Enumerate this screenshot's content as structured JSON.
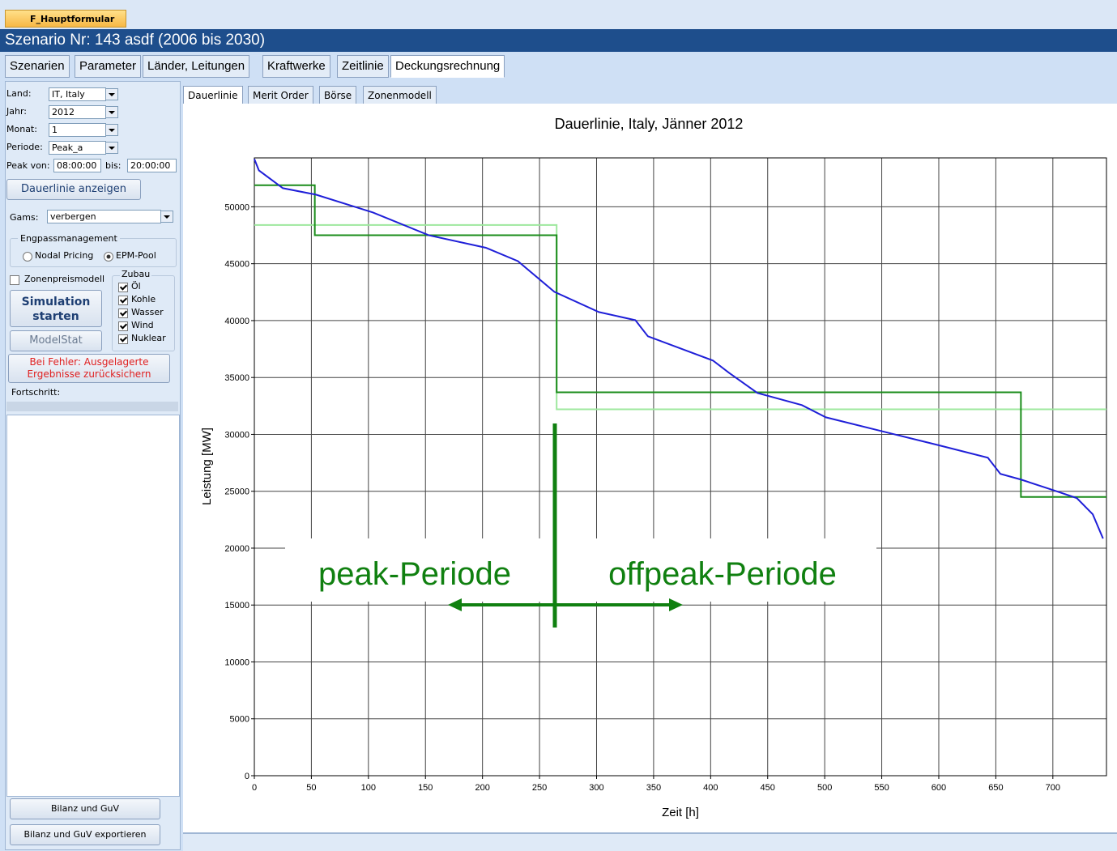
{
  "window": {
    "tab_title": "F_Hauptformular",
    "title": "Szenario Nr: 143 asdf (2006 bis 2030)"
  },
  "main_tabs": [
    "Szenarien",
    "Parameter",
    "Länder, Leitungen",
    "Kraftwerke",
    "Zeitlinie",
    "Deckungsrechnung"
  ],
  "sidebar": {
    "fields": [
      {
        "label": "Land:",
        "value": "IT, Italy"
      },
      {
        "label": "Jahr:",
        "value": "2012"
      },
      {
        "label": "Monat:",
        "value": "1"
      },
      {
        "label": "Periode:",
        "value": "Peak_a"
      }
    ],
    "peak_from_label": "Peak von:",
    "peak_from": "08:00:00",
    "peak_to_label": "bis:",
    "peak_to": "20:00:00",
    "show_button": "Dauerlinie anzeigen",
    "gams_label": "Gams:",
    "gams_value": "verbergen",
    "group_title": "Engpassmanagement",
    "radios": [
      "Nodal Pricing",
      "EPM-Pool"
    ],
    "zone_checkbox": "Zonenpreismodell",
    "zubau_title": "Zubau",
    "zubau": [
      "Öl",
      "Kohle",
      "Wasser",
      "Wind",
      "Nuklear"
    ],
    "simulate_button": "Simulation starten",
    "modelstat_button": "ModelStat",
    "error_button": "Bei Fehler: Ausgelagerte Ergebnisse zurücksichern",
    "progress_label": "Fortschritt:",
    "bottom_buttons": [
      "Bilanz und GuV",
      "Bilanz und GuV exportieren"
    ]
  },
  "sub_tabs": [
    "Dauerlinie",
    "Merit Order",
    "Börse",
    "Zonenmodell"
  ],
  "chart_data": {
    "type": "line",
    "title": "Dauerlinie, Italy, Jänner 2012",
    "xlabel": "Zeit [h]",
    "ylabel": "Leistung [MW]",
    "xlim": [
      0,
      747
    ],
    "xticks": [
      0,
      50,
      100,
      150,
      200,
      250,
      300,
      350,
      400,
      450,
      500,
      550,
      600,
      650,
      700
    ],
    "ylim": [
      0,
      54300
    ],
    "yticks": [
      0,
      5000,
      10000,
      15000,
      20000,
      25000,
      30000,
      35000,
      40000,
      45000,
      50000
    ],
    "grid": true,
    "series": [
      {
        "color": "#1f1fd8",
        "x": [
          0,
          4,
          25,
          54,
          104,
          153,
          203,
          231,
          263,
          302,
          334,
          345,
          402,
          416,
          441,
          480,
          501,
          558,
          601,
          643,
          654,
          672,
          700,
          721,
          735,
          744
        ],
        "values": [
          54200,
          53200,
          51640,
          51070,
          49500,
          47500,
          46400,
          45230,
          42530,
          40750,
          40040,
          38620,
          36490,
          35420,
          33640,
          32570,
          31500,
          30080,
          29020,
          27950,
          26530,
          26030,
          25110,
          24400,
          22970,
          20840
        ]
      },
      {
        "color": "#1a8c1a",
        "x": [
          0,
          53,
          53,
          265,
          265,
          672,
          672,
          747
        ],
        "values": [
          51900,
          51900,
          47500,
          47500,
          33700,
          33700,
          24500,
          24500
        ]
      },
      {
        "color": "#9ee89e",
        "x": [
          0,
          265,
          265,
          747
        ],
        "values": [
          48400,
          48400,
          32200,
          32200
        ]
      }
    ],
    "annotations": [
      "peak-Periode",
      "offpeak-Periode"
    ]
  }
}
